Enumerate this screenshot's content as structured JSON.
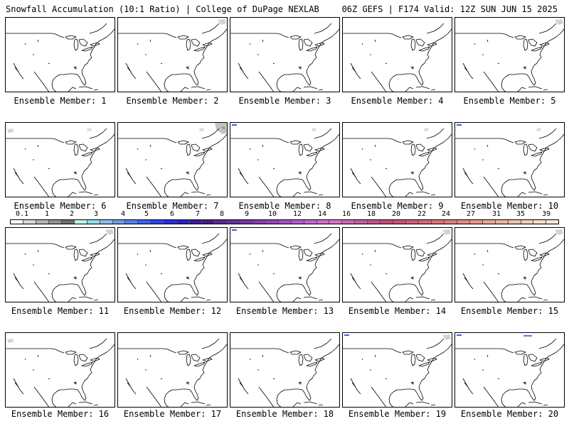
{
  "header": {
    "left": "Snowfall Accumulation (10:1 Ratio) | College of DuPage NEXLAB",
    "right": "06Z GEFS | F174 Valid: 12Z SUN JUN 15 2025"
  },
  "panels": [
    {
      "label": "Ensemble Member: 1",
      "snow": []
    },
    {
      "label": "Ensemble Member: 2",
      "snow": [
        "ne-gray"
      ]
    },
    {
      "label": "Ensemble Member: 3",
      "snow": []
    },
    {
      "label": "Ensemble Member: 4",
      "snow": []
    },
    {
      "label": "Ensemble Member: 5",
      "snow": [
        "ne-gray"
      ]
    },
    {
      "label": "Ensemble Member: 6",
      "snow": [
        "nw-gray",
        "n-gray"
      ]
    },
    {
      "label": "Ensemble Member: 7",
      "snow": [
        "ne-gray-large",
        "n-gray"
      ]
    },
    {
      "label": "Ensemble Member: 8",
      "snow": [
        "nw-blue",
        "n-gray"
      ]
    },
    {
      "label": "Ensemble Member: 9",
      "snow": [
        "n-gray"
      ]
    },
    {
      "label": "Ensemble Member: 10",
      "snow": [
        "nw-blue",
        "n-gray"
      ]
    },
    {
      "label": "Ensemble Member: 11",
      "snow": [
        "ne-gray"
      ]
    },
    {
      "label": "Ensemble Member: 12",
      "snow": []
    },
    {
      "label": "Ensemble Member: 13",
      "snow": [
        "nw-blue"
      ]
    },
    {
      "label": "Ensemble Member: 14",
      "snow": [
        "ne-gray"
      ]
    },
    {
      "label": "Ensemble Member: 15",
      "snow": [
        "ne-gray"
      ]
    },
    {
      "label": "Ensemble Member: 16",
      "snow": [
        "nw-gray"
      ]
    },
    {
      "label": "Ensemble Member: 17",
      "snow": []
    },
    {
      "label": "Ensemble Member: 18",
      "snow": []
    },
    {
      "label": "Ensemble Member: 19",
      "snow": [
        "nw-blue",
        "ne-gray"
      ]
    },
    {
      "label": "Ensemble Member: 20",
      "snow": [
        "nw-blue",
        "n-blue"
      ]
    }
  ],
  "colorbar": {
    "ticks": [
      "0.1",
      "1",
      "2",
      "3",
      "4",
      "5",
      "6",
      "7",
      "8",
      "9",
      "10",
      "12",
      "14",
      "16",
      "18",
      "20",
      "22",
      "24",
      "27",
      "31",
      "35",
      "39"
    ],
    "colors": [
      "#ffffff",
      "#d8d8d8",
      "#b4b4b4",
      "#929292",
      "#6f6f6f",
      "#b9f2ef",
      "#8fe0ea",
      "#8fbcf2",
      "#6a9ee8",
      "#4f80f0",
      "#3a62f2",
      "#2a44ea",
      "#2a2ae4",
      "#2a1ec8",
      "#3a1a9e",
      "#4a1c8a",
      "#5a2896",
      "#6a2ea0",
      "#7a34aa",
      "#8a3ab8",
      "#9840c4",
      "#a84ed0",
      "#b856da",
      "#c862dc",
      "#d46ad2",
      "#dc70c8",
      "#d464b4",
      "#cc5aa2",
      "#c45090",
      "#c8487e",
      "#d0507a",
      "#d85a78",
      "#de6478",
      "#e27078",
      "#e47c7c",
      "#e68a82",
      "#e8988a",
      "#eaa694",
      "#ecb49e",
      "#eec2aa",
      "#f0d0b8",
      "#f4dcc6",
      "#f8e8d8"
    ]
  }
}
